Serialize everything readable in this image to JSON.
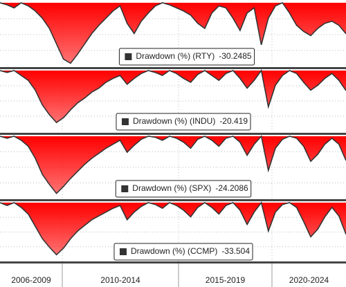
{
  "period_labels": [
    "2006-2009",
    "2010-2014",
    "2015-2019",
    "2020-2024"
  ],
  "chart_data": [
    {
      "type": "area",
      "ylim": [
        -62,
        0
      ],
      "series": [
        {
          "name": "Drawdown (%) (RTY)",
          "color": "#ff0000",
          "line_color": "#333333",
          "values": [
            0,
            -2,
            -5,
            0,
            -3,
            -8,
            -15,
            -25,
            -40,
            -55,
            -59,
            -50,
            -40,
            -30,
            -22,
            -15,
            -8,
            -3,
            -20,
            -30,
            -18,
            -10,
            -3,
            0,
            -2,
            -5,
            -8,
            -12,
            -20,
            -25,
            -10,
            -3,
            -5,
            -15,
            -27,
            -10,
            -5,
            -41,
            -15,
            -3,
            0,
            -10,
            -22,
            -28,
            -32,
            -25,
            -20,
            -18,
            -22,
            -30.2485
          ]
        }
      ]
    },
    {
      "type": "area",
      "ylim": [
        -62,
        0
      ],
      "series": [
        {
          "name": "Drawdown (%) (INDU)",
          "color": "#ff0000",
          "line_color": "#333333",
          "values": [
            0,
            -2,
            0,
            -5,
            -10,
            -20,
            -35,
            -45,
            -53,
            -48,
            -40,
            -33,
            -28,
            -22,
            -18,
            -12,
            -8,
            -5,
            -14,
            -8,
            -3,
            0,
            -2,
            -5,
            0,
            -3,
            -8,
            -12,
            -4,
            0,
            -5,
            -10,
            -3,
            0,
            -8,
            -18,
            -10,
            0,
            -37,
            -15,
            -5,
            0,
            -3,
            -12,
            -20,
            -15,
            -8,
            -3,
            -10,
            -20.419
          ]
        }
      ]
    },
    {
      "type": "area",
      "ylim": [
        -62,
        0
      ],
      "series": [
        {
          "name": "Drawdown (%) (SPX)",
          "color": "#ff0000",
          "line_color": "#333333",
          "values": [
            0,
            -2,
            0,
            -4,
            -10,
            -22,
            -38,
            -48,
            -57,
            -50,
            -42,
            -35,
            -28,
            -22,
            -17,
            -12,
            -8,
            -4,
            -16,
            -9,
            -3,
            0,
            -1,
            -4,
            0,
            -2,
            -6,
            -12,
            -3,
            0,
            -4,
            -10,
            -2,
            0,
            -6,
            -19,
            -8,
            0,
            -34,
            -12,
            -3,
            0,
            -2,
            -10,
            -25,
            -18,
            -8,
            -2,
            -8,
            -24.2086
          ]
        }
      ]
    },
    {
      "type": "area",
      "ylim": [
        -62,
        0
      ],
      "series": [
        {
          "name": "Drawdown (%) (CCMP)",
          "color": "#ff0000",
          "line_color": "#333333",
          "values": [
            0,
            -3,
            0,
            -5,
            -12,
            -25,
            -38,
            -47,
            -55,
            -48,
            -38,
            -30,
            -24,
            -18,
            -14,
            -10,
            -6,
            -3,
            -18,
            -10,
            -4,
            0,
            -2,
            -6,
            0,
            -3,
            -8,
            -15,
            -5,
            0,
            -5,
            -12,
            -3,
            0,
            -8,
            -23,
            -10,
            0,
            -30,
            -10,
            -2,
            0,
            -5,
            -20,
            -36,
            -28,
            -15,
            -5,
            -14,
            -33.504
          ]
        }
      ]
    }
  ]
}
